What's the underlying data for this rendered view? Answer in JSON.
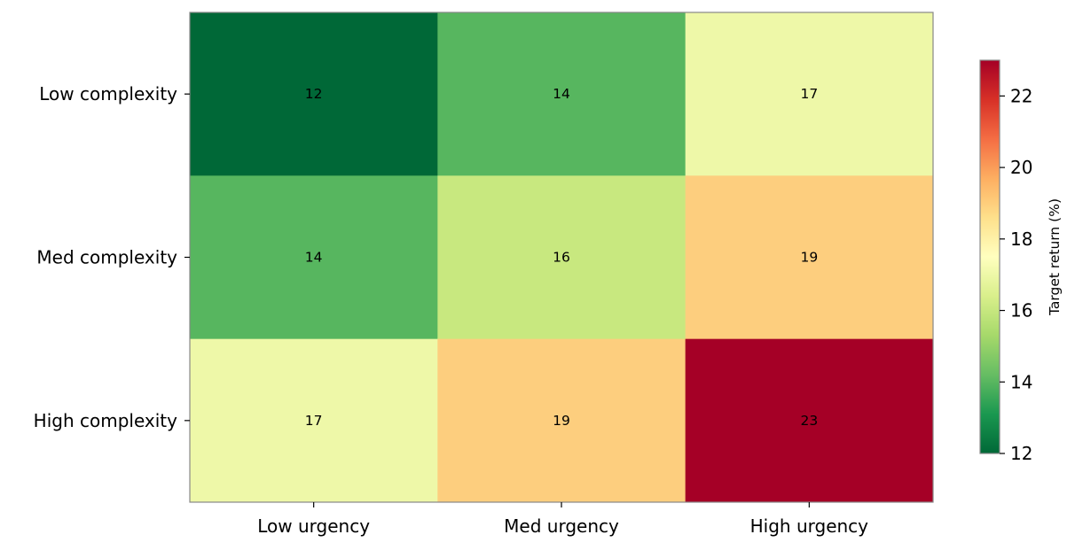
{
  "chart_data": {
    "type": "heatmap",
    "title": "",
    "x_categories": [
      "Low urgency",
      "Med urgency",
      "High urgency"
    ],
    "y_categories": [
      "Low complexity",
      "Med complexity",
      "High complexity"
    ],
    "values": [
      [
        12,
        14,
        17
      ],
      [
        14,
        16,
        19
      ],
      [
        17,
        19,
        23
      ]
    ],
    "colorscale": "RdYlGn_r",
    "vmin": 12,
    "vmax": 23,
    "colorbar": {
      "label": "Target return (%)",
      "ticks": [
        12,
        14,
        16,
        18,
        20,
        22
      ]
    },
    "cell_colors": [
      [
        "#006837",
        "#57b65f",
        "#eef8a8"
      ],
      [
        "#57b65f",
        "#c8e87f",
        "#fdce7e"
      ],
      [
        "#eef8a8",
        "#fdce7e",
        "#a50026"
      ]
    ],
    "colormap_stops": [
      "#006837",
      "#1a9850",
      "#66bd63",
      "#a6d96a",
      "#d9ef8b",
      "#ffffbf",
      "#fee08b",
      "#fdae61",
      "#f46d43",
      "#d73027",
      "#a50026"
    ],
    "frame_color": "#888888"
  }
}
